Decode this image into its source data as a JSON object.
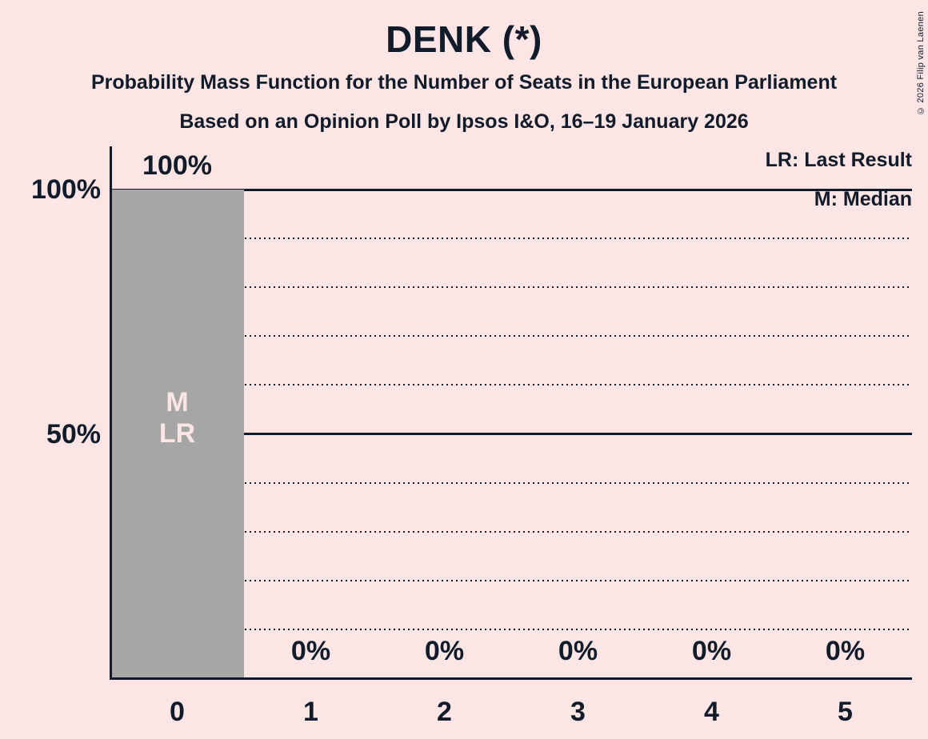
{
  "title": "DENK (*)",
  "subtitle1": "Probability Mass Function for the Number of Seats in the European Parliament",
  "subtitle2": "Based on an Opinion Poll by Ipsos I&O, 16–19 January 2026",
  "copyright": "© 2026 Filip van Laenen",
  "legend": {
    "last_result": "LR: Last Result",
    "median": "M: Median"
  },
  "colors": {
    "background": "#fbe5e5",
    "ink": "#121b2a",
    "bar": "#a6a6a6",
    "bar_inner_label": "#fbe5e5"
  },
  "chart_data": {
    "type": "bar",
    "title": "DENK (*)",
    "categories": [
      "0",
      "1",
      "2",
      "3",
      "4",
      "5"
    ],
    "values": [
      100,
      0,
      0,
      0,
      0,
      0
    ],
    "value_labels": [
      "100%",
      "0%",
      "0%",
      "0%",
      "0%",
      "0%"
    ],
    "xlabel": "",
    "ylabel": "",
    "ylim": [
      0,
      100
    ],
    "legend_position": "top-right",
    "grid": "horizontal",
    "y_axis": {
      "ticks": [
        {
          "value": 100,
          "label": "100%"
        },
        {
          "value": 50,
          "label": "50%"
        }
      ],
      "solid_gridlines": [
        100,
        50
      ],
      "dotted_gridlines": [
        90,
        80,
        70,
        60,
        40,
        30,
        20,
        10
      ]
    },
    "bar_annotations": [
      {
        "category_index": 0,
        "lines": [
          "M",
          "LR"
        ]
      }
    ]
  }
}
